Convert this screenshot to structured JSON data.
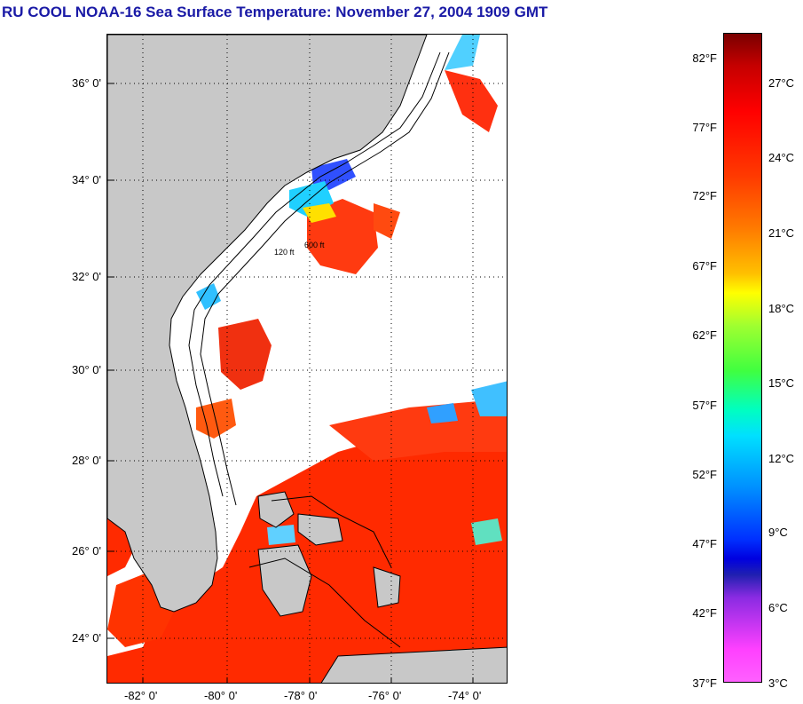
{
  "title": "RU COOL  NOAA-16  Sea Surface Temperature:  November 27, 2004 1909 GMT",
  "latitude_labels": [
    "36° 0'",
    "34° 0'",
    "32° 0'",
    "30° 0'",
    "28° 0'",
    "26° 0'",
    "24° 0'"
  ],
  "longitude_labels": [
    "-82° 0'",
    "-80° 0'",
    "-78° 0'",
    "-76° 0'",
    "-74° 0'"
  ],
  "isobath_labels": [
    "120 ft",
    "600 ft"
  ],
  "colorbar": {
    "fahrenheit": [
      "82°F",
      "77°F",
      "72°F",
      "67°F",
      "62°F",
      "57°F",
      "52°F",
      "47°F",
      "42°F",
      "37°F"
    ],
    "celsius": [
      "27°C",
      "24°C",
      "21°C",
      "18°C",
      "15°C",
      "12°C",
      "9°C",
      "6°C",
      "3°C"
    ]
  },
  "colors": {
    "title": "#1a1aa6",
    "land": "#c8c8c8",
    "warm": "#ff2a00",
    "cold": "#3050ff"
  }
}
